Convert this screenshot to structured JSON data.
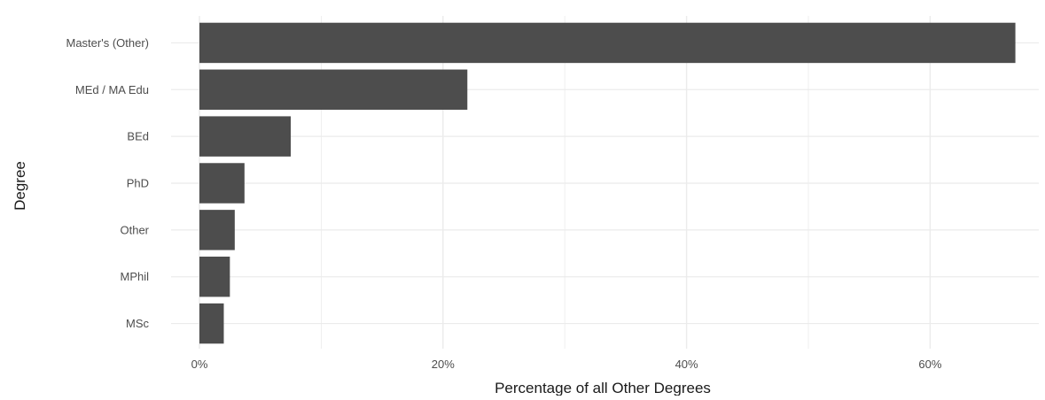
{
  "chart_data": {
    "type": "bar",
    "orientation": "horizontal",
    "title": "",
    "xlabel": "Percentage of all Other Degrees",
    "ylabel": "Degree",
    "categories": [
      "Master's (Other)",
      "MEd / MA Edu",
      "BEd",
      "PhD",
      "Other",
      "MPhil",
      "MSc"
    ],
    "values": [
      67,
      22,
      7.5,
      3.7,
      2.9,
      2.5,
      2.0
    ],
    "xlim": [
      0,
      69
    ],
    "x_ticks": [
      0,
      20,
      40,
      60
    ],
    "x_tick_labels": [
      "0%",
      "20%",
      "40%",
      "60%"
    ],
    "grid": true,
    "legend": "none",
    "bar_color": "#4d4d4d",
    "grid_color": "#ebebeb"
  }
}
